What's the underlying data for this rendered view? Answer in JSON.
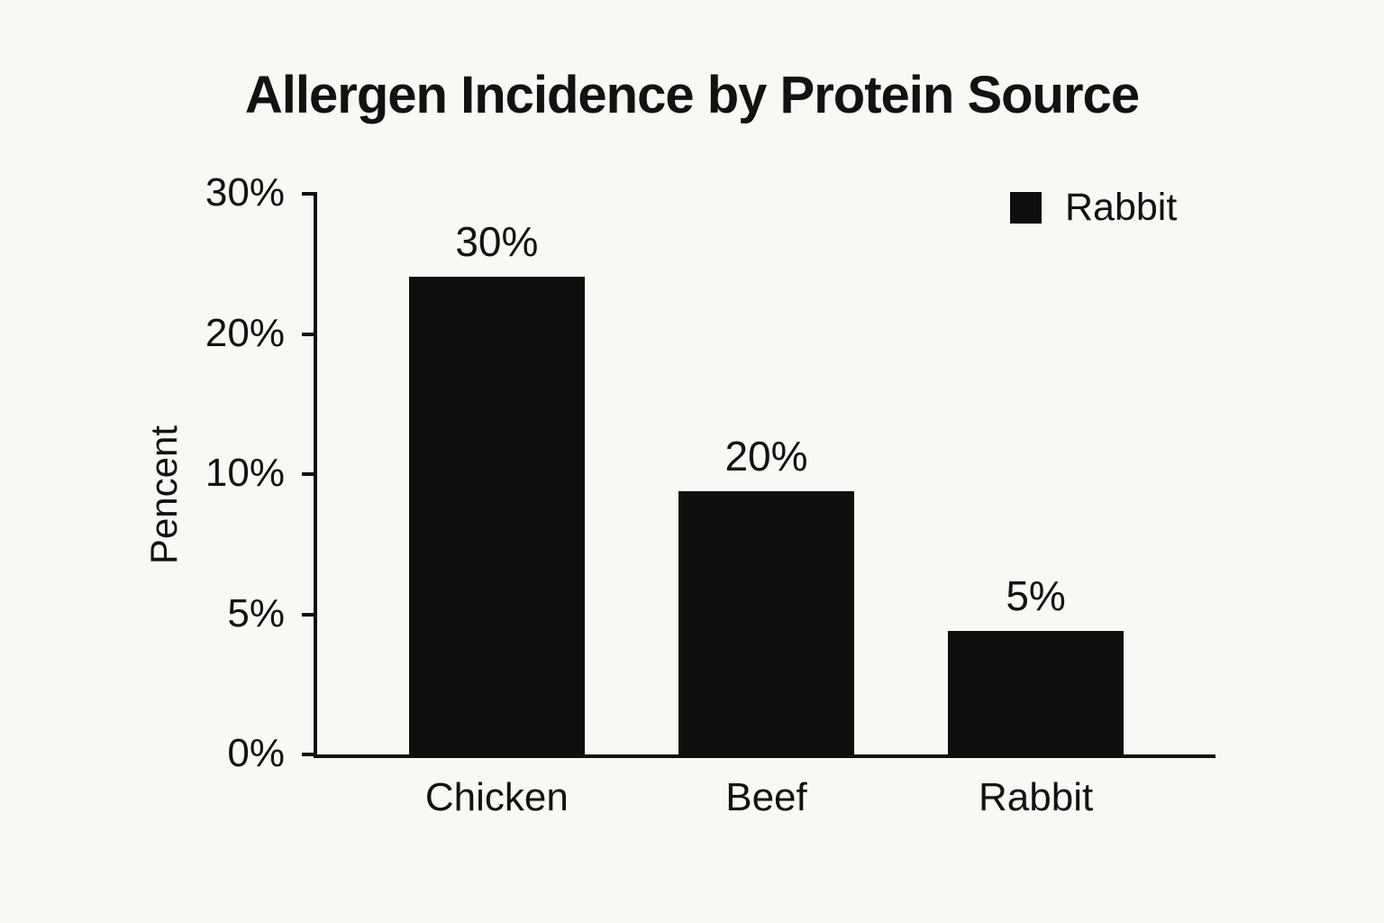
{
  "title": "Allergen Incidence by Protein Source",
  "legend": {
    "label": "Rabbit",
    "swatch_color": "#0f0e0c",
    "position": "top-right"
  },
  "chart_data": {
    "type": "bar",
    "title": "Allergen Incidence by Protein Source",
    "ylabel": "Pencent",
    "xlabel": "",
    "categories": [
      "Chicken",
      "Beef",
      "Rabbit"
    ],
    "values": [
      30,
      20,
      5
    ],
    "value_labels": [
      "30%",
      "20%",
      "5%"
    ],
    "bar_heights_frac_of_plot": [
      0.852,
      0.469,
      0.22
    ],
    "yticks": [
      "30%",
      "20%",
      "10%",
      "5%",
      "0%"
    ],
    "yaxis_note": "ticks evenly spaced despite non-linear values; bar heights as drawn do not match tick scale",
    "legend_entries": [
      "Rabbit"
    ],
    "legend_position": "top-right",
    "grid": false,
    "bar_color": "#0f0e0c",
    "background_color": "#faf8f5"
  }
}
